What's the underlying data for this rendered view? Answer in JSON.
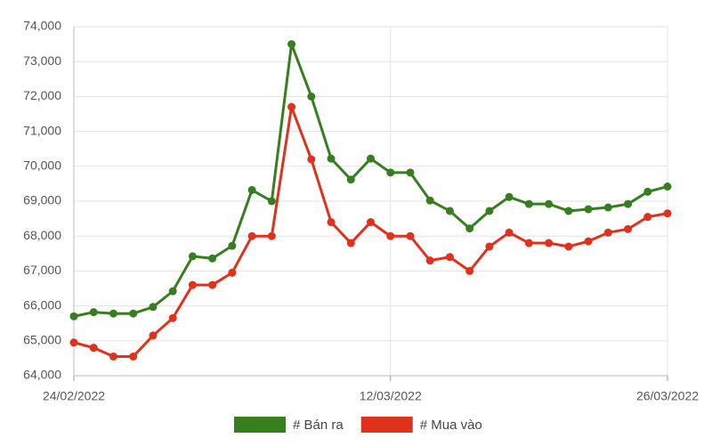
{
  "chart_data": {
    "type": "line",
    "categories": [
      "24/02/2022",
      null,
      null,
      null,
      null,
      null,
      null,
      null,
      null,
      null,
      null,
      null,
      null,
      null,
      null,
      null,
      "12/03/2022",
      null,
      null,
      null,
      null,
      null,
      null,
      null,
      null,
      null,
      null,
      null,
      null,
      null,
      "26/03/2022"
    ],
    "series": [
      {
        "name": "# Bán ra",
        "color": "#367e1f",
        "values": [
          65700,
          65820,
          65780,
          65780,
          65970,
          66420,
          67420,
          67360,
          67720,
          69320,
          69000,
          73500,
          72000,
          70220,
          69620,
          70220,
          69820,
          69820,
          69020,
          68720,
          68220,
          68720,
          69120,
          68920,
          68920,
          68720,
          68770,
          68820,
          68920,
          69270,
          69420
        ]
      },
      {
        "name": "# Mua vào",
        "color": "#e0301e",
        "values": [
          64950,
          64800,
          64550,
          64550,
          65150,
          65650,
          66600,
          66600,
          66950,
          68000,
          68000,
          71700,
          70200,
          68400,
          67800,
          68400,
          68000,
          68000,
          67300,
          67400,
          67000,
          67700,
          68100,
          67800,
          67800,
          67700,
          67850,
          68100,
          68200,
          68550,
          68650
        ]
      }
    ],
    "ylim": [
      64000,
      74000
    ],
    "yticks": [
      {
        "value": 64000,
        "label": "64,000"
      },
      {
        "value": 65000,
        "label": "65,000"
      },
      {
        "value": 66000,
        "label": "66,000"
      },
      {
        "value": 67000,
        "label": "67,000"
      },
      {
        "value": 68000,
        "label": "68,000"
      },
      {
        "value": 69000,
        "label": "69,000"
      },
      {
        "value": 70000,
        "label": "70,000"
      },
      {
        "value": 71000,
        "label": "71,000"
      },
      {
        "value": 72000,
        "label": "72,000"
      },
      {
        "value": 73000,
        "label": "73,000"
      },
      {
        "value": 74000,
        "label": "74,000"
      }
    ],
    "grid": true,
    "legend": "bottom"
  }
}
